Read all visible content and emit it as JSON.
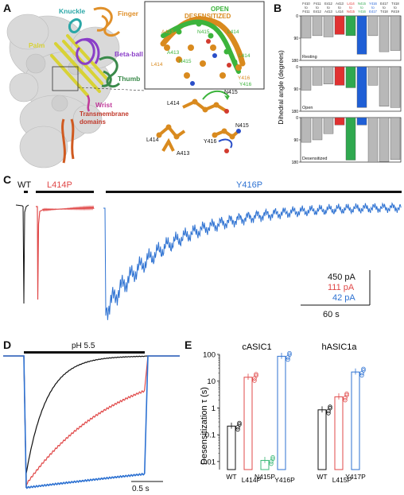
{
  "panel_labels": {
    "a": "A",
    "b": "B",
    "c": "C",
    "d": "D",
    "e": "E"
  },
  "panel_a": {
    "domains": {
      "knuckle": "Knuckle",
      "finger": "Finger",
      "palm": "Palm",
      "beta_ball": "Beta-ball",
      "thumb": "Thumb",
      "wrist": "Wrist",
      "tm_line1": "Transmembrane",
      "tm_line2": "domains"
    },
    "inset": {
      "open": "OPEN",
      "desensitized": "DESENSITIZED",
      "residues": [
        "A413",
        "N415",
        "L414",
        "L414",
        "N415",
        "A413",
        "L414",
        "Y416",
        "Y416"
      ]
    },
    "lower_residues": [
      "L414",
      "N415",
      "L414",
      "A413",
      "N415",
      "Y416"
    ],
    "colors": {
      "knuckle": "#2aa7a7",
      "finger": "#e0902a",
      "palm": "#d8d236",
      "beta_ball": "#8a3ec8",
      "thumb": "#3a8a4a",
      "wrist": "#c03a9a",
      "tm": "#d05a20",
      "open": "#3cb43c",
      "desensitized": "#d98a1e"
    }
  },
  "panel_b": {
    "ylabel": "Dihedral angle (degrees)",
    "column_labels_top": [
      "F410",
      "F411",
      "E412",
      "A413",
      "L414",
      "N415",
      "Y416",
      "E417",
      "T418"
    ],
    "column_labels_mid": [
      "to",
      "to",
      "to",
      "to",
      "to",
      "to",
      "to",
      "to",
      "to"
    ],
    "column_labels_bot": [
      "F411",
      "E412",
      "A413",
      "L414",
      "N415",
      "Y416",
      "E417",
      "T418",
      "R419"
    ],
    "highlight": {
      "L414": "#e03030",
      "N415": "#2fa84f",
      "Y416": "#1f5fd6"
    },
    "chart_data": [
      {
        "type": "bar",
        "title": "Resting",
        "ylim": [
          0,
          180
        ],
        "categories": [
          "F410-F411",
          "F411-E412",
          "E412-A413",
          "A413-L414",
          "L414-N415",
          "N415-Y416",
          "Y416-E417",
          "E417-T418",
          "T418-R419"
        ],
        "values": [
          90,
          80,
          85,
          75,
          80,
          155,
          80,
          145,
          140
        ],
        "yticks": [
          "0",
          "90",
          "180"
        ]
      },
      {
        "type": "bar",
        "title": "Open",
        "ylim": [
          0,
          180
        ],
        "categories": [
          "F410-F411",
          "F411-E412",
          "E412-A413",
          "A413-L414",
          "L414-N415",
          "N415-Y416",
          "Y416-E417",
          "E417-T418",
          "T418-R419"
        ],
        "values": [
          95,
          75,
          70,
          75,
          85,
          165,
          75,
          160,
          165
        ],
        "yticks": [
          "0",
          "90",
          "180"
        ]
      },
      {
        "type": "bar",
        "title": "Desensitized",
        "ylim": [
          0,
          180
        ],
        "categories": [
          "F410-F411",
          "F411-E412",
          "E412-A413",
          "A413-L414",
          "L414-N415",
          "N415-Y416",
          "Y416-E417",
          "E417-T418",
          "T418-R419"
        ],
        "values": [
          100,
          90,
          65,
          30,
          172,
          30,
          180,
          178,
          170
        ],
        "yticks": [
          "0",
          "90",
          "180"
        ]
      }
    ]
  },
  "panel_c": {
    "labels": {
      "wt": "WT",
      "l414p": "L414P",
      "y416p": "Y416P"
    },
    "scale": {
      "wt": "450 pA",
      "l414p": "111 pA",
      "y416p": "42 pA",
      "time": "60 s"
    },
    "colors": {
      "wt": "#111111",
      "l414p": "#e04848",
      "y416p": "#2e72d2"
    }
  },
  "panel_d": {
    "stim": "pH 5.5",
    "scale": "0.5 s"
  },
  "panel_e": {
    "chart_data": {
      "type": "bar",
      "ylabel": "Desensitization τ (s)",
      "yscale": "log",
      "ylim": [
        0.005,
        100
      ],
      "yticks": [
        "0.01",
        "0.1",
        "1",
        "10",
        "100"
      ],
      "groups": [
        {
          "name": "cASIC1",
          "categories": [
            "WT",
            "L414P",
            "N415P",
            "Y416P"
          ],
          "values": [
            0.21,
            14,
            0.011,
            85
          ],
          "colors": [
            "#111111",
            "#e04848",
            "#3cb878",
            "#2e72d2"
          ]
        },
        {
          "name": "hASIC1a",
          "categories": [
            "WT",
            "L415P",
            "Y417P"
          ],
          "values": [
            0.85,
            2.6,
            22
          ],
          "colors": [
            "#111111",
            "#e04848",
            "#2e72d2"
          ]
        }
      ]
    }
  }
}
